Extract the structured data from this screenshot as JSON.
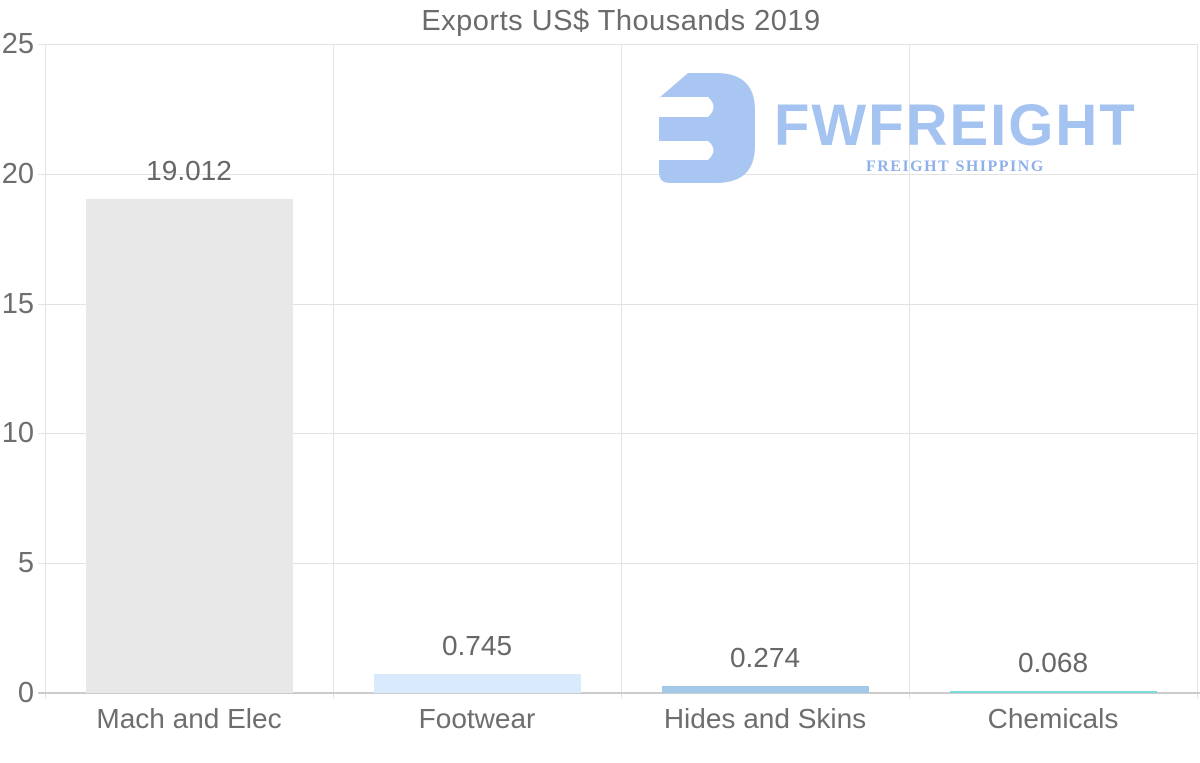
{
  "title": "Exports US$ Thousands 2019",
  "logo": {
    "brand": "FWFREIGHT",
    "tagline": "FREIGHT SHIPPING",
    "mark_color": "#a9c6f2",
    "brand_color": "#a5c3f1",
    "tagline_color": "#8fb1e9"
  },
  "chart_data": {
    "type": "bar",
    "title": "Exports US$ Thousands 2019",
    "categories": [
      "Mach and Elec",
      "Footwear",
      "Hides and Skins",
      "Chemicals"
    ],
    "values": [
      19.012,
      0.745,
      0.274,
      0.068
    ],
    "value_labels": [
      "19.012",
      "0.745",
      "0.274",
      "0.068"
    ],
    "bar_colors": [
      "#e8e8e8",
      "#d9eafc",
      "#a3c8e8",
      "#7edad6"
    ],
    "xlabel": "",
    "ylabel": "",
    "ylim": [
      0,
      25
    ],
    "yticks": [
      0,
      5,
      10,
      15,
      20,
      25
    ],
    "grid": true,
    "legend": "none"
  },
  "colors": {
    "grid": "#e3e3e3",
    "axis": "#cccccc",
    "tick_text": "#6e6e6e",
    "value_text": "#676767",
    "title_text": "#6b6b6b",
    "background": "#ffffff"
  }
}
